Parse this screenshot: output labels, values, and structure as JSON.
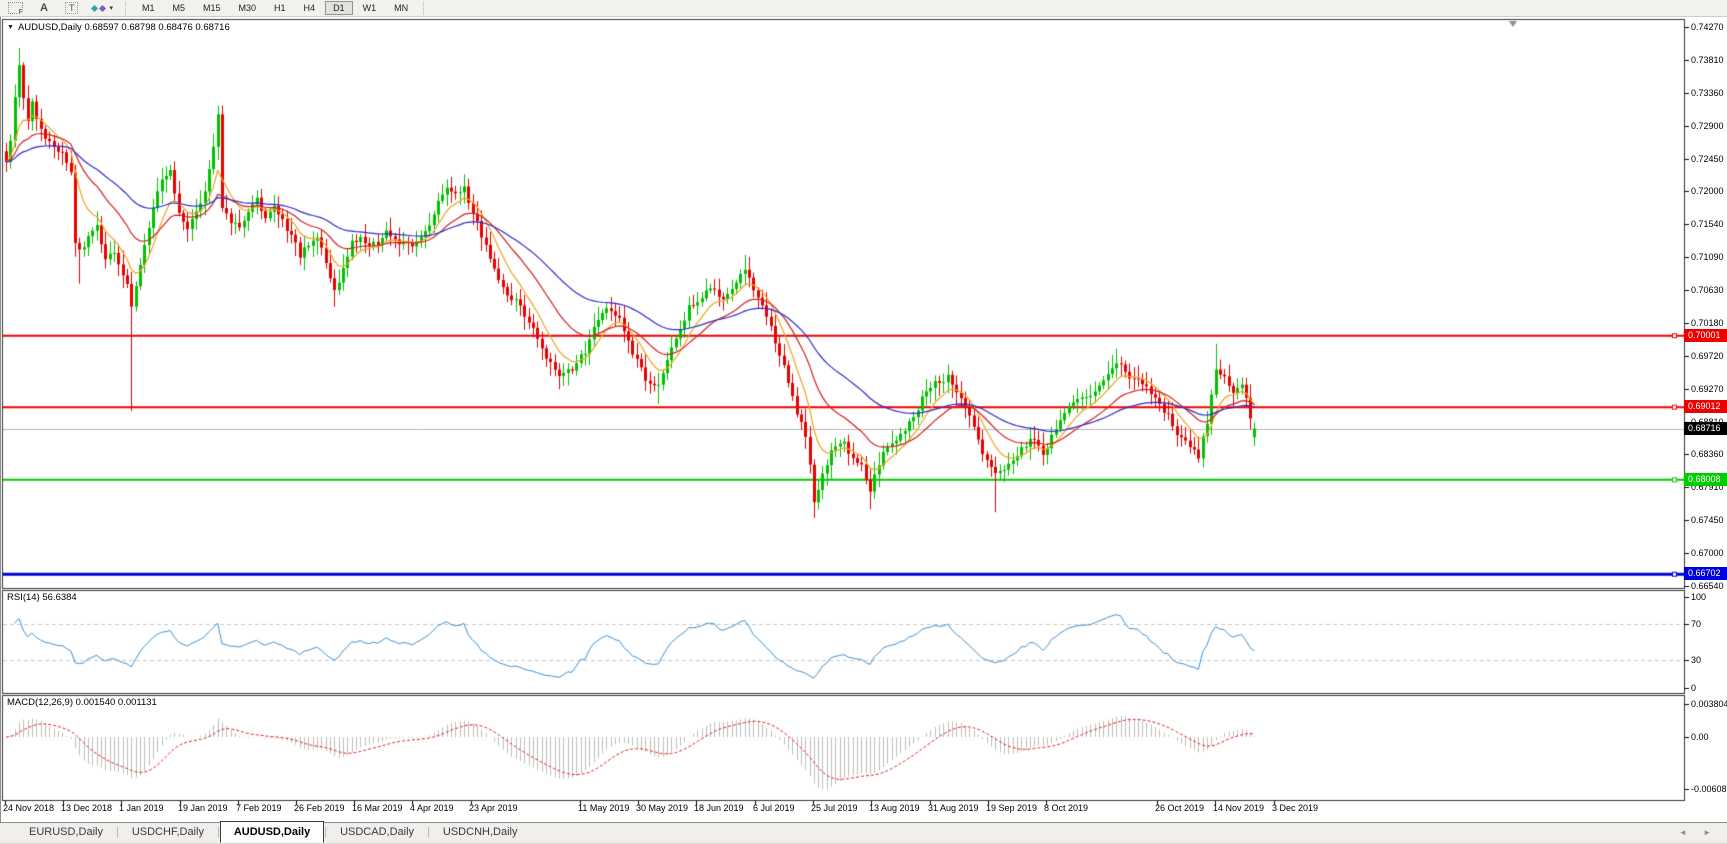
{
  "toolbar": {
    "icons": [
      {
        "name": "fibonacci-tool-icon",
        "label": "F"
      },
      {
        "name": "text-label-tool-icon",
        "label": "A"
      },
      {
        "name": "text-box-tool-icon",
        "label": "T"
      },
      {
        "name": "drawing-tools-icon",
        "caret": "▾"
      }
    ],
    "timeframes": [
      "M1",
      "M5",
      "M15",
      "M30",
      "H1",
      "H4",
      "D1",
      "W1",
      "MN"
    ],
    "active_timeframe": "D1"
  },
  "chart_header": {
    "dropdown": "▼",
    "symbol": "AUDUSD,Daily",
    "ohlc": "0.68597 0.68798 0.68476 0.68716"
  },
  "price_axis": {
    "ticks": [
      "0.74270",
      "0.73810",
      "0.73360",
      "0.72900",
      "0.72450",
      "0.72000",
      "0.71540",
      "0.71090",
      "0.70630",
      "0.70180",
      "0.69720",
      "0.69270",
      "0.68810",
      "0.68360",
      "0.67910",
      "0.67450",
      "0.67000",
      "0.66540"
    ]
  },
  "levels": [
    {
      "label": "0.70001",
      "value": 0.70001,
      "color": "#ee0000",
      "width": 2
    },
    {
      "label": "0.69012",
      "value": 0.69012,
      "color": "#ee0000",
      "width": 2
    },
    {
      "label": "0.68008",
      "value": 0.68008,
      "color": "#00cc00",
      "width": 2
    },
    {
      "label": "0.66702",
      "value": 0.66702,
      "color": "#0000dd",
      "width": 3
    }
  ],
  "current_price": {
    "label": "0.68716",
    "value": 0.68716,
    "line_color": "#b9b9b9",
    "box_color": "#000000"
  },
  "rsi_panel": {
    "label": "RSI(14)",
    "value": "56.6384",
    "axis_ticks": [
      "100",
      "70",
      "30",
      "0"
    ],
    "guide_levels": [
      70,
      30
    ],
    "line_color": "#3f8fd2"
  },
  "macd_panel": {
    "label": "MACD(12,26,9)",
    "values": "0.001540 0.001131",
    "axis_ticks": [
      "0.003804",
      "0.00",
      "-0.006087"
    ],
    "histogram_color": "#bdbdbd",
    "signal_color": "#dd2222"
  },
  "date_axis": [
    "24 Nov 2018",
    "13 Dec 2018",
    "1 Jan 2019",
    "19 Jan 2019",
    "7 Feb 2019",
    "26 Feb 2019",
    "16 Mar 2019",
    "4 Apr 2019",
    "23 Apr 2019",
    "11 May 2019",
    "30 May 2019",
    "18 Jun 2019",
    "6 Jul 2019",
    "25 Jul 2019",
    "13 Aug 2019",
    "31 Aug 2019",
    "19 Sep 2019",
    "8 Oct 2019",
    "26 Oct 2019",
    "14 Nov 2019",
    "3 Dec 2019"
  ],
  "tabs": {
    "items": [
      "EURUSD,Daily",
      "USDCHF,Daily",
      "AUDUSD,Daily",
      "USDCAD,Daily",
      "USDCNH,Daily"
    ],
    "active": "AUDUSD,Daily",
    "scroll_left": "◄",
    "scroll_right": "►"
  },
  "chart_data": {
    "type": "candlestick",
    "symbol": "AUDUSD",
    "timeframe": "Daily",
    "bar_count": 290,
    "current_bar": {
      "open": 0.68597,
      "high": 0.68798,
      "low": 0.68476,
      "close": 0.68716
    },
    "up_color": "#00c000",
    "down_color": "#e60000",
    "price_axis_range": {
      "top_price": 0.7427,
      "bottom_price": 0.6654
    },
    "moving_averages": [
      {
        "period": 8,
        "color": "#eea320"
      },
      {
        "period": 20,
        "color": "#d42020"
      },
      {
        "period": 45,
        "color": "#2b2bcc"
      }
    ],
    "horizontal_levels": [
      0.70001,
      0.69012,
      0.68008,
      0.66702
    ],
    "rsi": {
      "period": 14,
      "current": 56.6384,
      "range": [
        0,
        100
      ],
      "guides": [
        70,
        30
      ]
    },
    "macd": {
      "fast": 12,
      "slow": 26,
      "signal": 9,
      "current_main": 0.00154,
      "current_signal": 0.001131,
      "axis_max": 0.003804,
      "axis_min": -0.006087
    },
    "close_anchors": [
      [
        0,
        0.724
      ],
      [
        1,
        0.7268
      ],
      [
        2,
        0.733
      ],
      [
        3,
        0.737
      ],
      [
        4,
        0.733
      ],
      [
        5,
        0.73
      ],
      [
        6,
        0.7322
      ],
      [
        7,
        0.73
      ],
      [
        9,
        0.727
      ],
      [
        11,
        0.7262
      ],
      [
        13,
        0.7255
      ],
      [
        15,
        0.723
      ],
      [
        16,
        0.7128
      ],
      [
        17,
        0.7118
      ],
      [
        19,
        0.7135
      ],
      [
        21,
        0.715
      ],
      [
        23,
        0.7106
      ],
      [
        25,
        0.7118
      ],
      [
        27,
        0.7085
      ],
      [
        28,
        0.7072
      ],
      [
        29,
        0.7038
      ],
      [
        31,
        0.71
      ],
      [
        33,
        0.715
      ],
      [
        35,
        0.72
      ],
      [
        36,
        0.7218
      ],
      [
        38,
        0.7228
      ],
      [
        40,
        0.717
      ],
      [
        42,
        0.7152
      ],
      [
        44,
        0.7168
      ],
      [
        46,
        0.7195
      ],
      [
        48,
        0.7262
      ],
      [
        49,
        0.7306
      ],
      [
        50,
        0.7175
      ],
      [
        52,
        0.716
      ],
      [
        54,
        0.7148
      ],
      [
        56,
        0.7172
      ],
      [
        58,
        0.7188
      ],
      [
        60,
        0.7162
      ],
      [
        62,
        0.718
      ],
      [
        64,
        0.716
      ],
      [
        66,
        0.7138
      ],
      [
        68,
        0.7112
      ],
      [
        70,
        0.7128
      ],
      [
        72,
        0.714
      ],
      [
        74,
        0.7102
      ],
      [
        76,
        0.7062
      ],
      [
        78,
        0.7092
      ],
      [
        80,
        0.7128
      ],
      [
        82,
        0.7134
      ],
      [
        84,
        0.7125
      ],
      [
        86,
        0.713
      ],
      [
        88,
        0.7148
      ],
      [
        90,
        0.7134
      ],
      [
        92,
        0.7128
      ],
      [
        94,
        0.7126
      ],
      [
        96,
        0.7136
      ],
      [
        98,
        0.7152
      ],
      [
        100,
        0.7186
      ],
      [
        102,
        0.7208
      ],
      [
        104,
        0.7196
      ],
      [
        106,
        0.7204
      ],
      [
        108,
        0.717
      ],
      [
        110,
        0.714
      ],
      [
        113,
        0.7092
      ],
      [
        116,
        0.7058
      ],
      [
        119,
        0.704
      ],
      [
        122,
        0.7008
      ],
      [
        125,
        0.6968
      ],
      [
        128,
        0.6948
      ],
      [
        131,
        0.6956
      ],
      [
        134,
        0.6978
      ],
      [
        136,
        0.701
      ],
      [
        139,
        0.704
      ],
      [
        142,
        0.7022
      ],
      [
        145,
        0.6976
      ],
      [
        148,
        0.6942
      ],
      [
        151,
        0.6928
      ],
      [
        153,
        0.6968
      ],
      [
        156,
        0.701
      ],
      [
        158,
        0.704
      ],
      [
        161,
        0.7052
      ],
      [
        163,
        0.7066
      ],
      [
        166,
        0.7052
      ],
      [
        169,
        0.7072
      ],
      [
        171,
        0.7094
      ],
      [
        174,
        0.7052
      ],
      [
        177,
        0.701
      ],
      [
        180,
        0.6956
      ],
      [
        183,
        0.6892
      ],
      [
        185,
        0.6864
      ],
      [
        187,
        0.6772
      ],
      [
        189,
        0.681
      ],
      [
        191,
        0.684
      ],
      [
        194,
        0.685
      ],
      [
        196,
        0.6832
      ],
      [
        198,
        0.682
      ],
      [
        200,
        0.6786
      ],
      [
        203,
        0.684
      ],
      [
        206,
        0.6854
      ],
      [
        208,
        0.687
      ],
      [
        210,
        0.6886
      ],
      [
        212,
        0.6916
      ],
      [
        215,
        0.6934
      ],
      [
        218,
        0.6942
      ],
      [
        220,
        0.6922
      ],
      [
        223,
        0.6888
      ],
      [
        226,
        0.684
      ],
      [
        229,
        0.6806
      ],
      [
        232,
        0.682
      ],
      [
        235,
        0.6846
      ],
      [
        238,
        0.686
      ],
      [
        240,
        0.6834
      ],
      [
        243,
        0.6872
      ],
      [
        246,
        0.69
      ],
      [
        249,
        0.6914
      ],
      [
        252,
        0.6922
      ],
      [
        254,
        0.6942
      ],
      [
        257,
        0.6962
      ],
      [
        259,
        0.695
      ],
      [
        261,
        0.694
      ],
      [
        263,
        0.6934
      ],
      [
        266,
        0.6914
      ],
      [
        269,
        0.6888
      ],
      [
        271,
        0.686
      ],
      [
        274,
        0.6846
      ],
      [
        276,
        0.6832
      ],
      [
        278,
        0.6882
      ],
      [
        280,
        0.6952
      ],
      [
        282,
        0.6942
      ],
      [
        284,
        0.6922
      ],
      [
        286,
        0.6932
      ],
      [
        288,
        0.689
      ],
      [
        289,
        0.68716
      ]
    ],
    "wick_events": [
      {
        "bar": 3,
        "high": 0.7398
      },
      {
        "bar": 17,
        "low": 0.7072
      },
      {
        "bar": 29,
        "low": 0.6896
      },
      {
        "bar": 49,
        "high": 0.7318
      },
      {
        "bar": 76,
        "low": 0.704
      },
      {
        "bar": 151,
        "low": 0.6906
      },
      {
        "bar": 171,
        "high": 0.7112
      },
      {
        "bar": 187,
        "low": 0.6748
      },
      {
        "bar": 200,
        "low": 0.676
      },
      {
        "bar": 229,
        "low": 0.6756
      },
      {
        "bar": 257,
        "high": 0.6982
      },
      {
        "bar": 280,
        "high": 0.6989
      }
    ]
  }
}
